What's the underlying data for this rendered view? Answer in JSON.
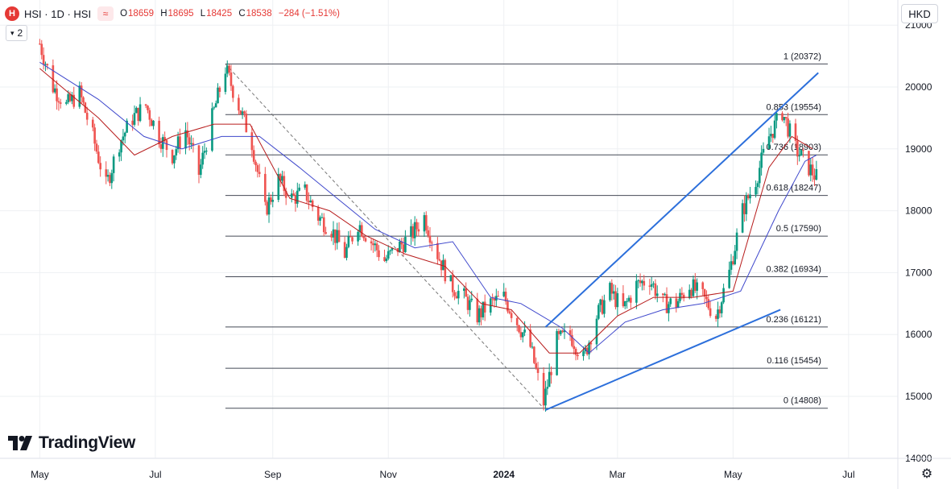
{
  "header": {
    "logo_letter": "H",
    "symbol": "HSI · 1D · HSI",
    "compare_symbol": "≈",
    "ohlc": [
      {
        "k": "O",
        "v": "18659"
      },
      {
        "k": "H",
        "v": "18695"
      },
      {
        "k": "L",
        "v": "18425"
      },
      {
        "k": "C",
        "v": "18538"
      },
      {
        "k": "",
        "v": "−284 (−1.51%)"
      }
    ],
    "legend_count": "2"
  },
  "currency": "HKD",
  "watermark": "TradingView",
  "colors": {
    "up": "#089981",
    "down": "#ef5350",
    "candle_color_red": "#e36b6b",
    "sma_fast": "#b71c1c",
    "sma_slow": "#3f48cc",
    "trend": "#2c6fdb",
    "fib": "#454a56",
    "grid": "#eef0f3"
  },
  "chart_data": {
    "type": "candlestick",
    "x_axis_labels": [
      "May",
      "Jul",
      "Sep",
      "Nov",
      "2024",
      "Mar",
      "May",
      "Jul"
    ],
    "y_axis_labels": [
      "14000",
      "15000",
      "16000",
      "17000",
      "18000",
      "19000",
      "20000",
      "21000"
    ],
    "ylim": [
      14000,
      21000
    ],
    "fib_levels": [
      {
        "ratio": "1",
        "price": 20372,
        "label": "1 (20372)"
      },
      {
        "ratio": "0.853",
        "price": 19554,
        "label": "0.853 (19554)"
      },
      {
        "ratio": "0.736",
        "price": 18903,
        "label": "0.736 (18903)"
      },
      {
        "ratio": "0.618",
        "price": 18247,
        "label": "0.618 (18247)"
      },
      {
        "ratio": "0.5",
        "price": 17590,
        "label": "0.5 (17590)"
      },
      {
        "ratio": "0.382",
        "price": 16934,
        "label": "0.382 (16934)"
      },
      {
        "ratio": "0.236",
        "price": 16121,
        "label": "0.236 (16121)"
      },
      {
        "ratio": "0.116",
        "price": 15454,
        "label": "0.116 (15454)"
      },
      {
        "ratio": "0",
        "price": 14808,
        "label": "0 (14808)"
      }
    ],
    "close_path": [
      [
        "2023-05-01",
        20700
      ],
      [
        "2023-05-08",
        20000
      ],
      [
        "2023-05-15",
        19700
      ],
      [
        "2023-05-22",
        19900
      ],
      [
        "2023-05-29",
        19200
      ],
      [
        "2023-06-05",
        18400
      ],
      [
        "2023-06-12",
        19100
      ],
      [
        "2023-06-19",
        19500
      ],
      [
        "2023-06-26",
        19700
      ],
      [
        "2023-07-03",
        19200
      ],
      [
        "2023-07-10",
        18900
      ],
      [
        "2023-07-17",
        19300
      ],
      [
        "2023-07-24",
        18600
      ],
      [
        "2023-07-31",
        19500
      ],
      [
        "2023-08-07",
        20300
      ],
      [
        "2023-08-14",
        19700
      ],
      [
        "2023-08-21",
        19100
      ],
      [
        "2023-08-28",
        18000
      ],
      [
        "2023-09-04",
        18500
      ],
      [
        "2023-09-11",
        18200
      ],
      [
        "2023-09-18",
        18300
      ],
      [
        "2023-09-25",
        17900
      ],
      [
        "2023-10-02",
        17700
      ],
      [
        "2023-10-09",
        17300
      ],
      [
        "2023-10-16",
        17800
      ],
      [
        "2023-10-23",
        17500
      ],
      [
        "2023-10-30",
        17200
      ],
      [
        "2023-11-06",
        17400
      ],
      [
        "2023-11-13",
        17600
      ],
      [
        "2023-11-20",
        17900
      ],
      [
        "2023-11-27",
        17300
      ],
      [
        "2023-12-04",
        16800
      ],
      [
        "2023-12-11",
        16600
      ],
      [
        "2023-12-18",
        16300
      ],
      [
        "2023-12-25",
        16500
      ],
      [
        "2024-01-01",
        16600
      ],
      [
        "2024-01-08",
        16200
      ],
      [
        "2024-01-15",
        15800
      ],
      [
        "2024-01-22",
        14900
      ],
      [
        "2024-01-29",
        15900
      ],
      [
        "2024-02-05",
        16000
      ],
      [
        "2024-02-12",
        15600
      ],
      [
        "2024-02-19",
        16300
      ],
      [
        "2024-02-26",
        16700
      ],
      [
        "2024-03-04",
        16400
      ],
      [
        "2024-03-11",
        16800
      ],
      [
        "2024-03-18",
        16900
      ],
      [
        "2024-03-25",
        16500
      ],
      [
        "2024-04-01",
        16500
      ],
      [
        "2024-04-08",
        16800
      ],
      [
        "2024-04-15",
        16600
      ],
      [
        "2024-04-22",
        16300
      ],
      [
        "2024-04-29",
        17000
      ],
      [
        "2024-05-06",
        18000
      ],
      [
        "2024-05-13",
        18500
      ],
      [
        "2024-05-20",
        19200
      ],
      [
        "2024-05-27",
        19600
      ],
      [
        "2024-06-03",
        19000
      ],
      [
        "2024-06-10",
        18700
      ],
      [
        "2024-06-14",
        18538
      ]
    ],
    "sma_fast_path": [
      [
        "2023-05-01",
        20300
      ],
      [
        "2023-06-01",
        19500
      ],
      [
        "2023-06-20",
        18900
      ],
      [
        "2023-07-10",
        19200
      ],
      [
        "2023-08-01",
        19400
      ],
      [
        "2023-08-20",
        19400
      ],
      [
        "2023-09-10",
        18200
      ],
      [
        "2023-10-01",
        18000
      ],
      [
        "2023-10-20",
        17600
      ],
      [
        "2023-11-10",
        17300
      ],
      [
        "2023-12-01",
        17100
      ],
      [
        "2023-12-20",
        16500
      ],
      [
        "2024-01-05",
        16400
      ],
      [
        "2024-01-25",
        15700
      ],
      [
        "2024-02-10",
        15700
      ],
      [
        "2024-03-01",
        16300
      ],
      [
        "2024-03-20",
        16600
      ],
      [
        "2024-04-10",
        16600
      ],
      [
        "2024-05-01",
        16700
      ],
      [
        "2024-05-20",
        18700
      ],
      [
        "2024-06-01",
        19200
      ],
      [
        "2024-06-12",
        19000
      ]
    ],
    "sma_slow_path": [
      [
        "2023-05-01",
        20400
      ],
      [
        "2023-06-01",
        19800
      ],
      [
        "2023-06-25",
        19200
      ],
      [
        "2023-07-15",
        19000
      ],
      [
        "2023-08-05",
        19200
      ],
      [
        "2023-08-25",
        19200
      ],
      [
        "2023-09-15",
        18700
      ],
      [
        "2023-10-05",
        18200
      ],
      [
        "2023-10-25",
        17700
      ],
      [
        "2023-11-15",
        17400
      ],
      [
        "2023-12-05",
        17500
      ],
      [
        "2023-12-25",
        16600
      ],
      [
        "2024-01-10",
        16500
      ],
      [
        "2024-02-01",
        16100
      ],
      [
        "2024-02-15",
        15700
      ],
      [
        "2024-03-05",
        16200
      ],
      [
        "2024-03-25",
        16400
      ],
      [
        "2024-04-15",
        16500
      ],
      [
        "2024-05-05",
        16700
      ],
      [
        "2024-05-25",
        18000
      ],
      [
        "2024-06-08",
        18800
      ],
      [
        "2024-06-14",
        18900
      ]
    ],
    "trend_lines": [
      {
        "from": [
          "2024-01-23",
          16120
        ],
        "to": [
          "2024-06-15",
          20230
        ]
      },
      {
        "from": [
          "2024-01-23",
          14780
        ],
        "to": [
          "2024-05-26",
          16400
        ]
      }
    ],
    "fib_anchor_line": {
      "from": [
        "2023-08-07",
        20372
      ],
      "to": [
        "2024-01-22",
        14808
      ]
    },
    "legend": "none",
    "grid": true
  }
}
